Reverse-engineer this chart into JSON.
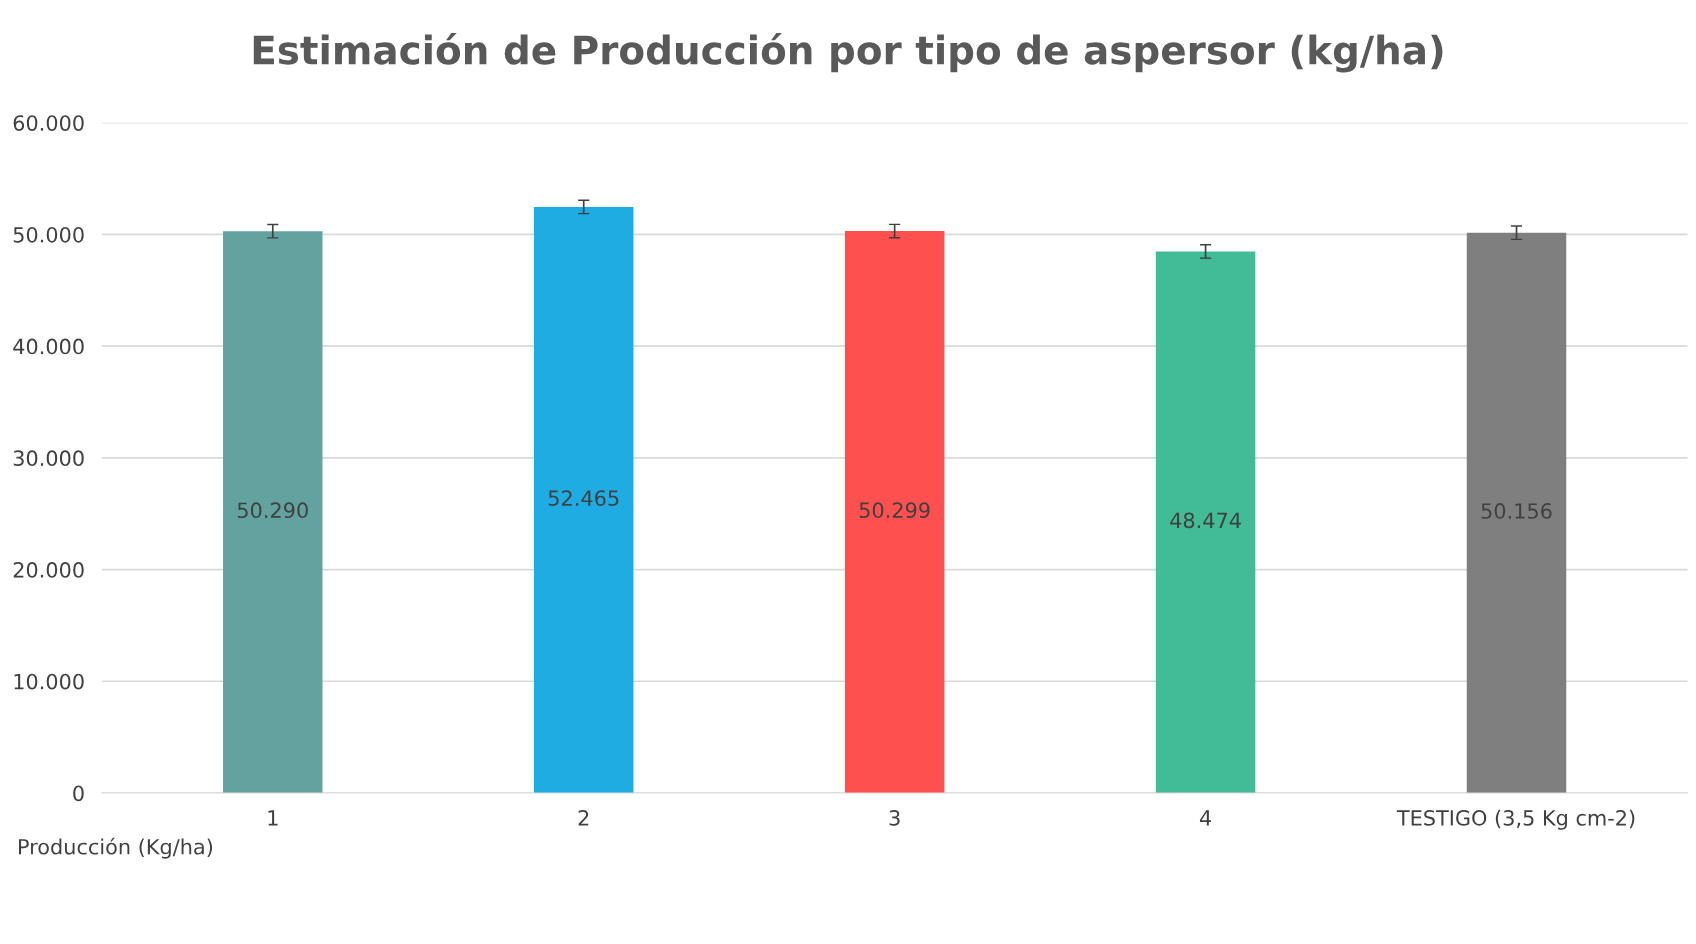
{
  "chart_data": {
    "type": "bar",
    "title": "Estimación de Producción por tipo de aspersor (kg/ha)",
    "categories": [
      "1",
      "2",
      "3",
      "4",
      "TESTIGO (3,5 Kg cm-2)"
    ],
    "values": [
      50290,
      52465,
      50299,
      48474,
      50156
    ],
    "colors": [
      "#62a39f",
      "#1eace3",
      "#ff5050",
      "#42bb97",
      "#7f7f7f"
    ],
    "value_labels": [
      "50.290",
      "52.465",
      "50.299",
      "48.474",
      "50.156"
    ],
    "errors": [
      600,
      600,
      600,
      600,
      600
    ],
    "ylim": [
      0,
      60000
    ],
    "yticks": [
      {
        "value": 0,
        "label": "0"
      },
      {
        "value": 10000,
        "label": "10.000"
      },
      {
        "value": 20000,
        "label": "20.000"
      },
      {
        "value": 30000,
        "label": "30.000"
      },
      {
        "value": 40000,
        "label": "40.000"
      },
      {
        "value": 50000,
        "label": "50.000"
      },
      {
        "value": 60000,
        "label": "60.000"
      }
    ],
    "grid": "y",
    "annotations": [
      "Producción (Kg/ha)"
    ]
  }
}
